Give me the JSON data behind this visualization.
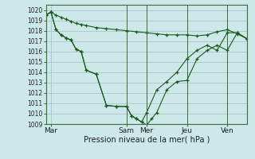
{
  "xlabel": "Pression niveau de la mer( hPa )",
  "bg_color": "#cce8e8",
  "grid_color": "#aabbcc",
  "line_color": "#1a5c1a",
  "ylim": [
    1009,
    1020.5
  ],
  "yticks": [
    1009,
    1010,
    1011,
    1012,
    1013,
    1014,
    1015,
    1016,
    1017,
    1018,
    1019,
    1020
  ],
  "xlim": [
    0,
    40
  ],
  "xtick_pos": [
    1,
    16,
    20,
    28,
    36
  ],
  "xtick_labels": [
    "Mar",
    "Sam",
    "Mer",
    "Jeu",
    "Ven"
  ],
  "vlines": [
    16,
    20,
    28,
    36
  ],
  "s1_x": [
    0,
    1,
    2,
    3,
    4,
    5,
    6,
    7,
    8,
    10,
    12,
    14,
    16,
    18,
    20,
    22,
    24,
    26,
    28,
    30,
    32,
    34,
    36,
    38,
    40
  ],
  "s1_y": [
    1019.5,
    1019.8,
    1019.5,
    1019.3,
    1019.1,
    1018.9,
    1018.7,
    1018.6,
    1018.5,
    1018.3,
    1018.2,
    1018.1,
    1018.0,
    1017.9,
    1017.8,
    1017.7,
    1017.6,
    1017.6,
    1017.6,
    1017.5,
    1017.6,
    1017.9,
    1018.1,
    1017.7,
    1017.2
  ],
  "s2_x": [
    0,
    1,
    2,
    3,
    4,
    5,
    6,
    7,
    8,
    10,
    12,
    14,
    16,
    17,
    18,
    19,
    20,
    21,
    22,
    24,
    26,
    28,
    30,
    32,
    34,
    36,
    38,
    40
  ],
  "s2_y": [
    1019.5,
    1019.8,
    1018.1,
    1017.6,
    1017.3,
    1017.1,
    1016.2,
    1016.0,
    1014.2,
    1013.8,
    1010.8,
    1010.7,
    1010.7,
    1009.8,
    1009.5,
    1009.2,
    1008.9,
    1009.5,
    1010.1,
    1012.3,
    1013.1,
    1013.2,
    1015.3,
    1016.1,
    1016.6,
    1016.1,
    1017.8,
    1017.2
  ],
  "s3_x": [
    0,
    1,
    2,
    3,
    4,
    5,
    6,
    7,
    8,
    10,
    12,
    14,
    16,
    17,
    18,
    19,
    20,
    22,
    24,
    26,
    28,
    30,
    32,
    34,
    36,
    38,
    40
  ],
  "s3_y": [
    1019.5,
    1019.8,
    1018.1,
    1017.6,
    1017.3,
    1017.1,
    1016.2,
    1016.0,
    1014.2,
    1013.8,
    1010.8,
    1010.7,
    1010.7,
    1009.8,
    1009.5,
    1009.2,
    1010.1,
    1012.3,
    1013.1,
    1014.0,
    1015.3,
    1016.1,
    1016.6,
    1016.1,
    1017.8,
    1017.8,
    1017.2
  ]
}
